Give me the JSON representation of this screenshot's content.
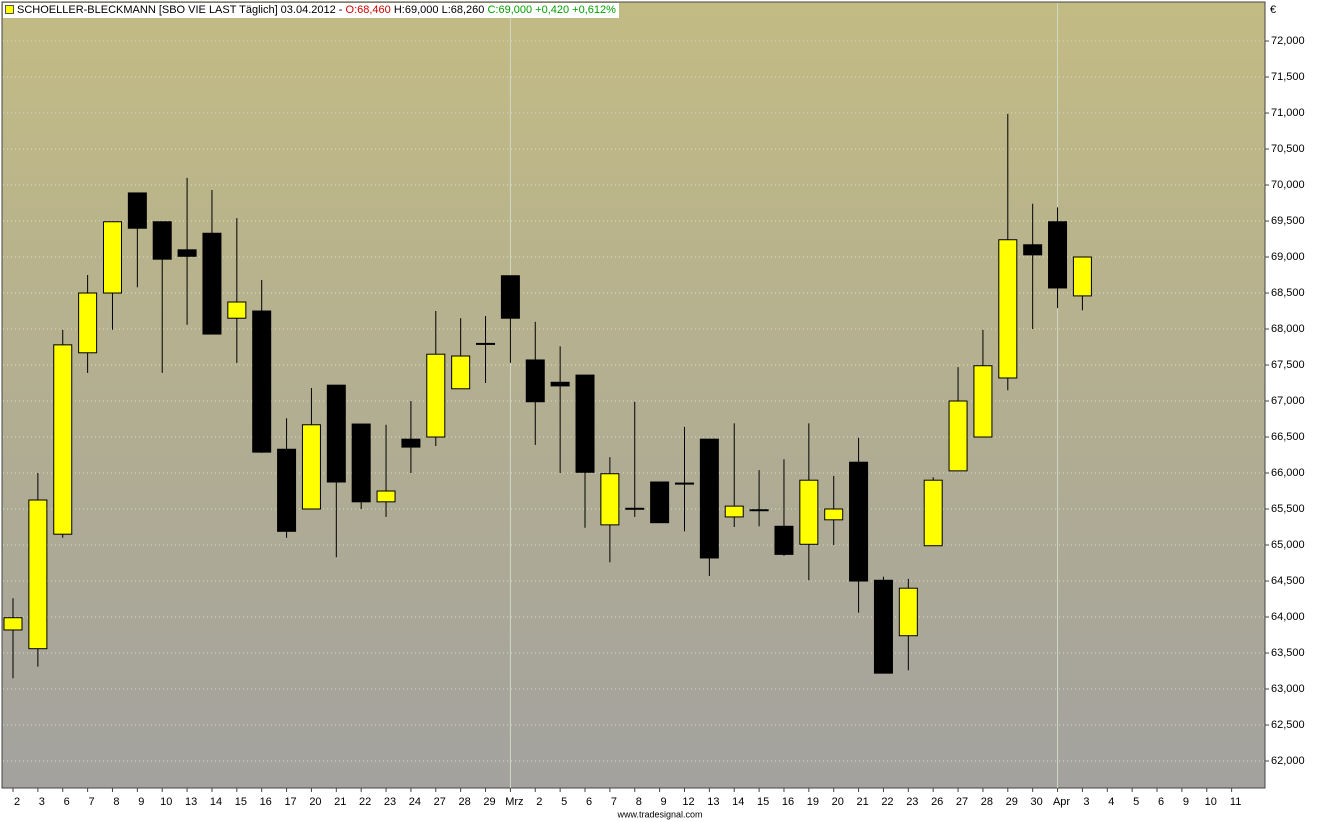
{
  "chart_data": {
    "type": "candlestick",
    "title": "SCHOELLER-BLECKMANN [SBO VIE LAST Täglich] 03.04.2012 -",
    "quote": {
      "open": "O:68,460",
      "high": "H:69,000",
      "low": "L:68,260",
      "close": "C:69,000 +0,420 +0,612%"
    },
    "currency": "€",
    "source": "www.tradesignal.com",
    "categories": [
      "2",
      "3",
      "6",
      "7",
      "8",
      "9",
      "10",
      "13",
      "14",
      "15",
      "16",
      "17",
      "20",
      "21",
      "22",
      "23",
      "24",
      "27",
      "28",
      "29",
      "Mrz",
      "2",
      "5",
      "6",
      "7",
      "8",
      "9",
      "12",
      "13",
      "14",
      "15",
      "16",
      "19",
      "20",
      "21",
      "22",
      "23",
      "26",
      "27",
      "28",
      "29",
      "30",
      "Apr",
      "3",
      "4",
      "5",
      "6",
      "9",
      "10",
      "11"
    ],
    "open": [
      63820,
      63560,
      65150,
      67670,
      68500,
      69890,
      69490,
      69100,
      69330,
      68150,
      68250,
      66330,
      65500,
      67220,
      66680,
      65600,
      66470,
      66500,
      67170,
      67790,
      68740,
      67570,
      67260,
      67360,
      65280,
      65500,
      65875,
      65850,
      66470,
      65390,
      65480,
      65260,
      65010,
      65350,
      66150,
      64510,
      63740,
      64990,
      66030,
      66500,
      67320,
      69170,
      69490,
      68460,
      null,
      null,
      null,
      null,
      null,
      null
    ],
    "high": [
      64260,
      66000,
      67990,
      68750,
      69490,
      69890,
      69490,
      70100,
      69930,
      69540,
      68680,
      66760,
      67180,
      67220,
      66680,
      66670,
      67000,
      68250,
      68150,
      68180,
      68740,
      68100,
      67760,
      67360,
      66220,
      66990,
      65875,
      66640,
      66470,
      66690,
      66040,
      66190,
      66690,
      65960,
      66490,
      64560,
      64530,
      65940,
      67470,
      67990,
      70990,
      69740,
      69690,
      69000,
      null,
      null,
      null,
      null,
      null,
      null
    ],
    "low": [
      63150,
      63310,
      65100,
      67390,
      67990,
      68580,
      67390,
      68060,
      67930,
      67530,
      66280,
      65100,
      65500,
      64830,
      65500,
      65390,
      66000,
      66375,
      67170,
      67250,
      67530,
      66390,
      66000,
      65240,
      64760,
      65390,
      65310,
      65190,
      64570,
      65250,
      65260,
      64850,
      64510,
      65000,
      64060,
      63220,
      63260,
      64990,
      66030,
      66500,
      67150,
      68000,
      68290,
      68260,
      null,
      null,
      null,
      null,
      null,
      null
    ],
    "close": [
      63990,
      65625,
      67780,
      68500,
      69490,
      69400,
      68970,
      69010,
      67930,
      68375,
      66290,
      65190,
      66670,
      65875,
      65600,
      65750,
      66360,
      67650,
      67625,
      67800,
      68150,
      66990,
      67210,
      66010,
      65990,
      65510,
      65310,
      65860,
      64820,
      65540,
      65490,
      64870,
      65900,
      65500,
      64500,
      63220,
      64400,
      65900,
      67000,
      67490,
      69240,
      69030,
      68570,
      69000,
      null,
      null,
      null,
      null,
      null,
      null
    ],
    "up_color": "#ffff00",
    "down_color": "#000000",
    "ylim": [
      61625,
      72542
    ],
    "yticks": [
      {
        "value": 62000,
        "label": "62,000"
      },
      {
        "value": 62500,
        "label": "62,500"
      },
      {
        "value": 63000,
        "label": "63,000"
      },
      {
        "value": 63500,
        "label": "63,500"
      },
      {
        "value": 64000,
        "label": "64,000"
      },
      {
        "value": 64500,
        "label": "64,500"
      },
      {
        "value": 65000,
        "label": "65,000"
      },
      {
        "value": 65500,
        "label": "65,500"
      },
      {
        "value": 66000,
        "label": "66,000"
      },
      {
        "value": 66500,
        "label": "66,500"
      },
      {
        "value": 67000,
        "label": "67,000"
      },
      {
        "value": 67500,
        "label": "67,500"
      },
      {
        "value": 68000,
        "label": "68,000"
      },
      {
        "value": 68500,
        "label": "68,500"
      },
      {
        "value": 69000,
        "label": "69,000"
      },
      {
        "value": 69500,
        "label": "69,500"
      },
      {
        "value": 70000,
        "label": "70,000"
      },
      {
        "value": 70500,
        "label": "70,500"
      },
      {
        "value": 71000,
        "label": "71,000"
      },
      {
        "value": 71500,
        "label": "71,500"
      },
      {
        "value": 72000,
        "label": "72,000"
      }
    ],
    "grid": true
  }
}
